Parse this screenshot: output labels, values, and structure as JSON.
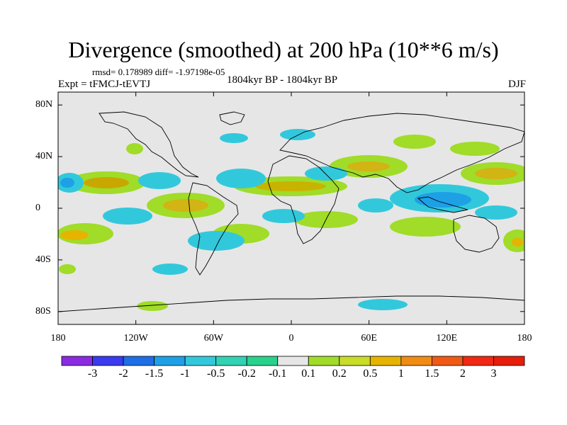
{
  "figure": {
    "title": "Divergence (smoothed) at 200 hPa (10**6 m/s)",
    "stats_line": "rmsd= 0.178989 diff= -1.97198e-05",
    "experiment_label": "Expt = tFMCJ-tEVTJ",
    "period_label": "1804kyr BP - 1804kyr BP",
    "season_label": "DJF"
  },
  "axes": {
    "latitude_labels": [
      "80N",
      "40N",
      "0",
      "40S",
      "80S"
    ],
    "latitude_values": [
      80,
      40,
      0,
      -40,
      -80
    ],
    "longitude_labels": [
      "180",
      "120W",
      "60W",
      "0",
      "60E",
      "120E",
      "180"
    ],
    "longitude_values": [
      -180,
      -120,
      -60,
      0,
      60,
      120,
      180
    ]
  },
  "colorbar": {
    "labels": [
      "-3",
      "-2",
      "-1.5",
      "-1",
      "-0.5",
      "-0.2",
      "-0.1",
      "0.1",
      "0.2",
      "0.5",
      "1",
      "1.5",
      "2",
      "3"
    ],
    "colors": [
      "#8a2be2",
      "#3a3af0",
      "#1e6ee6",
      "#1ea0e6",
      "#32c8dc",
      "#32d2b4",
      "#28d28c",
      "#e6e6e6",
      "#a0dc28",
      "#c8dc28",
      "#e6b400",
      "#f08c14",
      "#f05a14",
      "#f02814",
      "#e61e0a"
    ]
  },
  "colors": {
    "ocean_background": "#e6e6e6",
    "coastline": "#000000"
  }
}
